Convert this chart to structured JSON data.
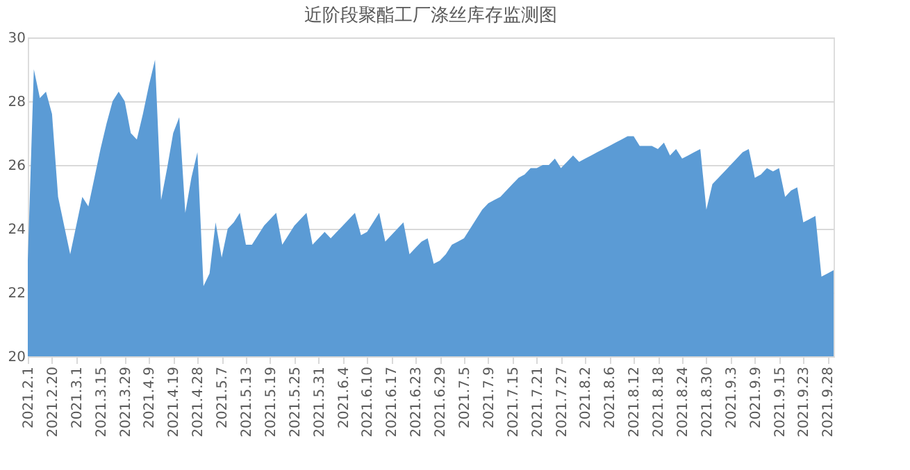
{
  "chart_data": {
    "type": "area",
    "title": "近阶段聚酯工厂涤丝库存监测图",
    "categories": [
      "2021.2.1",
      null,
      null,
      null,
      "2021.2.20",
      null,
      null,
      null,
      "2021.3.1",
      null,
      null,
      null,
      "2021.3.15",
      null,
      null,
      null,
      "2021.3.29",
      null,
      null,
      null,
      "2021.4.9",
      null,
      null,
      null,
      "2021.4.19",
      null,
      null,
      null,
      "2021.4.28",
      null,
      null,
      null,
      "2021.5.7",
      null,
      null,
      null,
      "2021.5.13",
      null,
      null,
      null,
      "2021.5.19",
      null,
      null,
      null,
      "2021.5.25",
      null,
      null,
      null,
      "2021.5.31",
      null,
      null,
      null,
      "2021.6.4",
      null,
      null,
      null,
      "2021.6.10",
      null,
      null,
      null,
      "2021.6.17",
      null,
      null,
      null,
      "2021.6.23",
      null,
      null,
      null,
      "2021.6.29",
      null,
      null,
      null,
      "2021.7.5",
      null,
      null,
      null,
      "2021.7.9",
      null,
      null,
      null,
      "2021.7.15",
      null,
      null,
      null,
      "2021.7.21",
      null,
      null,
      null,
      "2021.7.27",
      null,
      null,
      null,
      "2021.8.2",
      null,
      null,
      null,
      "2021.8.6",
      null,
      null,
      null,
      "2021.8.12",
      null,
      null,
      null,
      "2021.8.18",
      null,
      null,
      null,
      "2021.8.24",
      null,
      null,
      null,
      "2021.8.30",
      null,
      null,
      null,
      "2021.9.3",
      null,
      null,
      null,
      "2021.9.9",
      null,
      null,
      null,
      "2021.9.15",
      null,
      null,
      null,
      "2021.9.23",
      null,
      null,
      null,
      "2021.9.28",
      null
    ],
    "series": [
      {
        "color": "#5b9bd5",
        "values": [
          23.0,
          29.0,
          28.1,
          28.3,
          27.6,
          25.0,
          24.1,
          23.2,
          24.1,
          25.0,
          24.7,
          25.6,
          26.5,
          27.3,
          28.0,
          28.3,
          28.0,
          27.0,
          26.8,
          27.6,
          28.5,
          29.3,
          24.9,
          25.9,
          27.0,
          27.5,
          24.5,
          25.6,
          26.4,
          22.2,
          22.6,
          24.2,
          23.1,
          24.0,
          24.2,
          24.5,
          23.5,
          23.5,
          23.8,
          24.1,
          24.3,
          24.5,
          23.5,
          23.8,
          24.1,
          24.3,
          24.5,
          23.5,
          23.7,
          23.9,
          23.7,
          23.9,
          24.1,
          24.3,
          24.5,
          23.8,
          23.9,
          24.2,
          24.5,
          23.6,
          23.8,
          24.0,
          24.2,
          23.2,
          23.4,
          23.6,
          23.7,
          22.9,
          23.0,
          23.2,
          23.5,
          23.6,
          23.7,
          24.0,
          24.3,
          24.6,
          24.8,
          24.9,
          25.0,
          25.2,
          25.4,
          25.6,
          25.7,
          25.9,
          25.9,
          26.0,
          26.0,
          26.2,
          25.9,
          26.1,
          26.3,
          26.1,
          26.2,
          26.3,
          26.4,
          26.5,
          26.6,
          26.7,
          26.8,
          26.9,
          26.9,
          26.6,
          26.6,
          26.6,
          26.5,
          26.7,
          26.3,
          26.5,
          26.2,
          26.3,
          26.4,
          26.5,
          24.6,
          25.4,
          25.6,
          25.8,
          26.0,
          26.2,
          26.4,
          26.5,
          25.6,
          25.7,
          25.9,
          25.8,
          25.9,
          25.0,
          25.2,
          25.3,
          24.2,
          24.3,
          24.4,
          22.5,
          22.6,
          22.7
        ]
      }
    ],
    "ylim": [
      20,
      30
    ],
    "yticks": [
      20,
      22,
      24,
      26,
      28,
      30
    ],
    "grid": "y"
  }
}
